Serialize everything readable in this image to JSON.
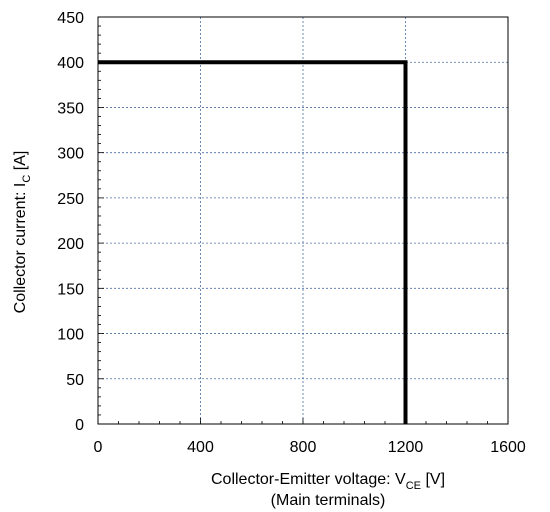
{
  "chart_data": {
    "type": "line",
    "xlabel": {
      "main": "Collector-Emitter voltage: V",
      "sub": "CE",
      "unit": " [V]",
      "note": "(Main terminals)"
    },
    "ylabel": {
      "main": "Collector current: I",
      "sub": "C",
      "unit": " [A]"
    },
    "xlim": [
      0,
      1600
    ],
    "ylim": [
      0,
      450
    ],
    "x_ticks": [
      0,
      400,
      800,
      1200,
      1600
    ],
    "y_ticks": [
      0,
      50,
      100,
      150,
      200,
      250,
      300,
      350,
      400,
      450
    ],
    "x_tick_labels": [
      "0",
      "400",
      "800",
      "1200",
      "1600"
    ],
    "y_tick_labels": [
      "0",
      "50",
      "100",
      "150",
      "200",
      "250",
      "300",
      "350",
      "400",
      "450"
    ],
    "grid": true,
    "series": [
      {
        "color": "#000000",
        "x": [
          0,
          1200,
          1200
        ],
        "y": [
          400,
          400,
          0
        ]
      }
    ]
  }
}
